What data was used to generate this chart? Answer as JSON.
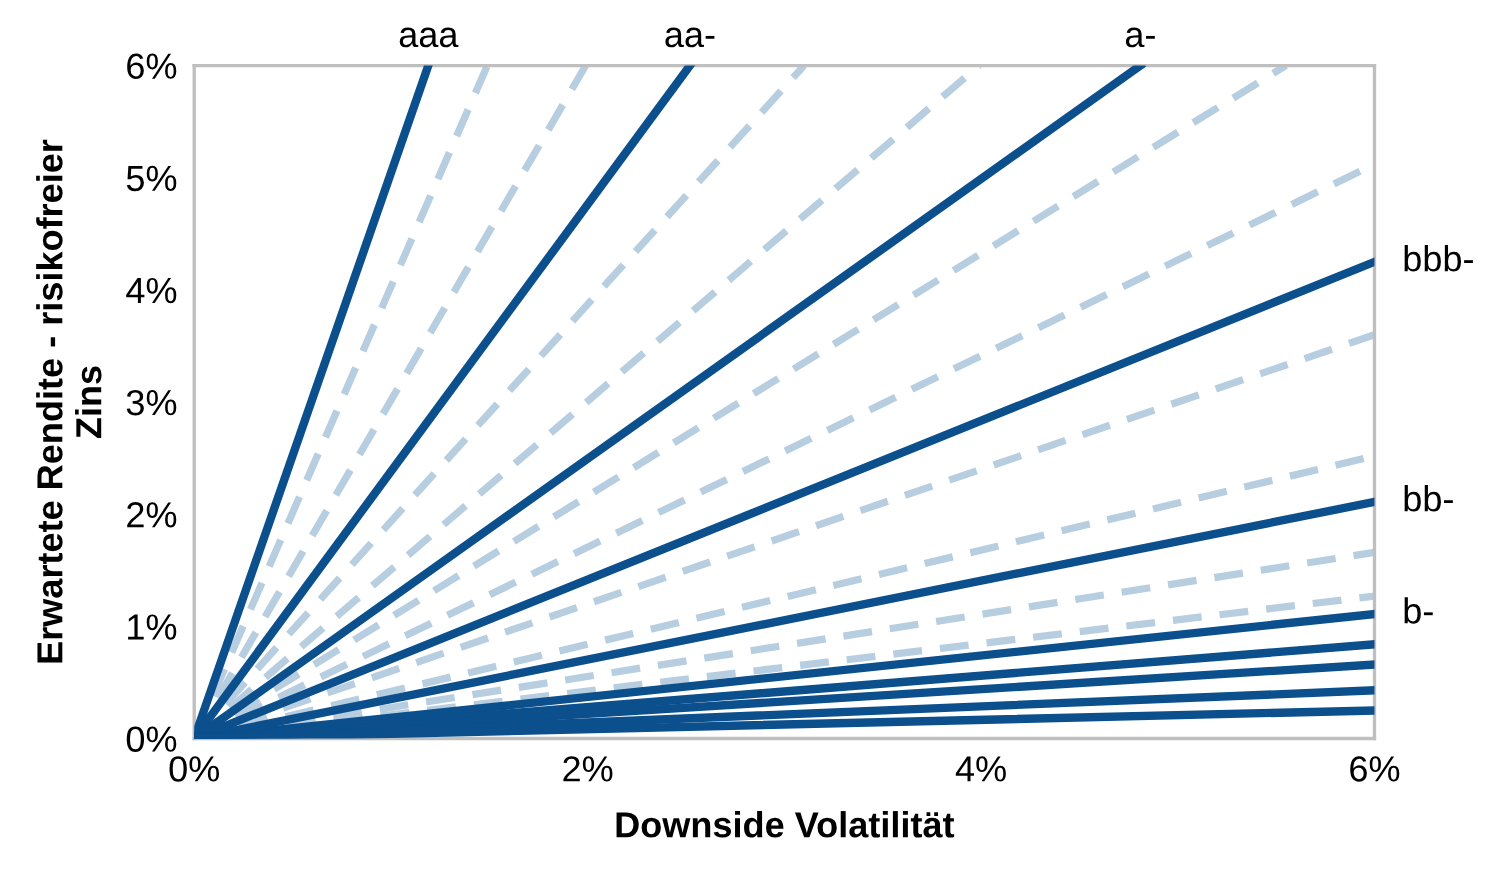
{
  "chart_data": {
    "type": "line",
    "xlabel": "Downside Volatilität",
    "ylabel": "Erwartete Rendite - risikofreier Zins",
    "xlim": [
      0,
      6
    ],
    "ylim": [
      0,
      6
    ],
    "xticks": [
      {
        "value": 0,
        "label": "0%"
      },
      {
        "value": 2,
        "label": "2%"
      },
      {
        "value": 4,
        "label": "4%"
      },
      {
        "value": 6,
        "label": "6%"
      }
    ],
    "yticks": [
      {
        "value": 0,
        "label": "0%"
      },
      {
        "value": 1,
        "label": "1%"
      },
      {
        "value": 2,
        "label": "2%"
      },
      {
        "value": 3,
        "label": "3%"
      },
      {
        "value": 4,
        "label": "4%"
      },
      {
        "value": 5,
        "label": "5%"
      },
      {
        "value": 6,
        "label": "6%"
      }
    ],
    "grid": false,
    "legend": false,
    "marker": "none",
    "series": [
      {
        "x": [
          0,
          5.55
        ],
        "values": [
          0,
          6
        ],
        "color": "#b7cde0",
        "line_style": "dashed"
      },
      {
        "x": [
          0,
          6
        ],
        "values": [
          0,
          5.12
        ],
        "color": "#b7cde0",
        "line_style": "dashed"
      },
      {
        "x": [
          0,
          3.99
        ],
        "values": [
          0,
          6
        ],
        "color": "#b7cde0",
        "line_style": "dashed"
      },
      {
        "x": [
          0,
          3.1
        ],
        "values": [
          0,
          6
        ],
        "color": "#b7cde0",
        "line_style": "dashed"
      },
      {
        "x": [
          0,
          1.99
        ],
        "values": [
          0,
          6
        ],
        "color": "#b7cde0",
        "line_style": "dashed"
      },
      {
        "x": [
          0,
          1.49
        ],
        "values": [
          0,
          6
        ],
        "color": "#b7cde0",
        "line_style": "dashed"
      },
      {
        "x": [
          0,
          6
        ],
        "values": [
          0,
          3.6
        ],
        "color": "#b7cde0",
        "line_style": "dashed"
      },
      {
        "x": [
          0,
          6
        ],
        "values": [
          0,
          2.52
        ],
        "color": "#b7cde0",
        "line_style": "dashed"
      },
      {
        "x": [
          0,
          6
        ],
        "values": [
          0,
          1.66
        ],
        "color": "#b7cde0",
        "line_style": "dashed"
      },
      {
        "x": [
          0,
          6
        ],
        "values": [
          0,
          1.27
        ],
        "color": "#b7cde0",
        "line_style": "dashed"
      },
      {
        "name": "aaa",
        "x": [
          0,
          1.19
        ],
        "values": [
          0,
          6
        ],
        "color": "#0b4f8c",
        "line_style": "solid"
      },
      {
        "name": "aa-",
        "x": [
          0,
          2.52
        ],
        "values": [
          0,
          6
        ],
        "color": "#0b4f8c",
        "line_style": "solid"
      },
      {
        "name": "a-",
        "x": [
          0,
          4.81
        ],
        "values": [
          0,
          6
        ],
        "color": "#0b4f8c",
        "line_style": "solid"
      },
      {
        "name": "bbb-",
        "x": [
          0,
          6
        ],
        "values": [
          0,
          4.25
        ],
        "color": "#0b4f8c",
        "line_style": "solid"
      },
      {
        "name": "bb-",
        "x": [
          0,
          6
        ],
        "values": [
          0,
          2.11
        ],
        "color": "#0b4f8c",
        "line_style": "solid"
      },
      {
        "name": "b-",
        "x": [
          0,
          6
        ],
        "values": [
          0,
          1.11
        ],
        "color": "#0b4f8c",
        "line_style": "solid"
      },
      {
        "x": [
          0,
          6
        ],
        "values": [
          0,
          0.84
        ],
        "color": "#0b4f8c",
        "line_style": "solid"
      },
      {
        "x": [
          0,
          6
        ],
        "values": [
          0,
          0.66
        ],
        "color": "#0b4f8c",
        "line_style": "solid"
      },
      {
        "x": [
          0,
          6
        ],
        "values": [
          0,
          0.43
        ],
        "color": "#0b4f8c",
        "line_style": "solid"
      },
      {
        "x": [
          0,
          6
        ],
        "values": [
          0,
          0.25
        ],
        "color": "#0b4f8c",
        "line_style": "solid"
      }
    ]
  }
}
